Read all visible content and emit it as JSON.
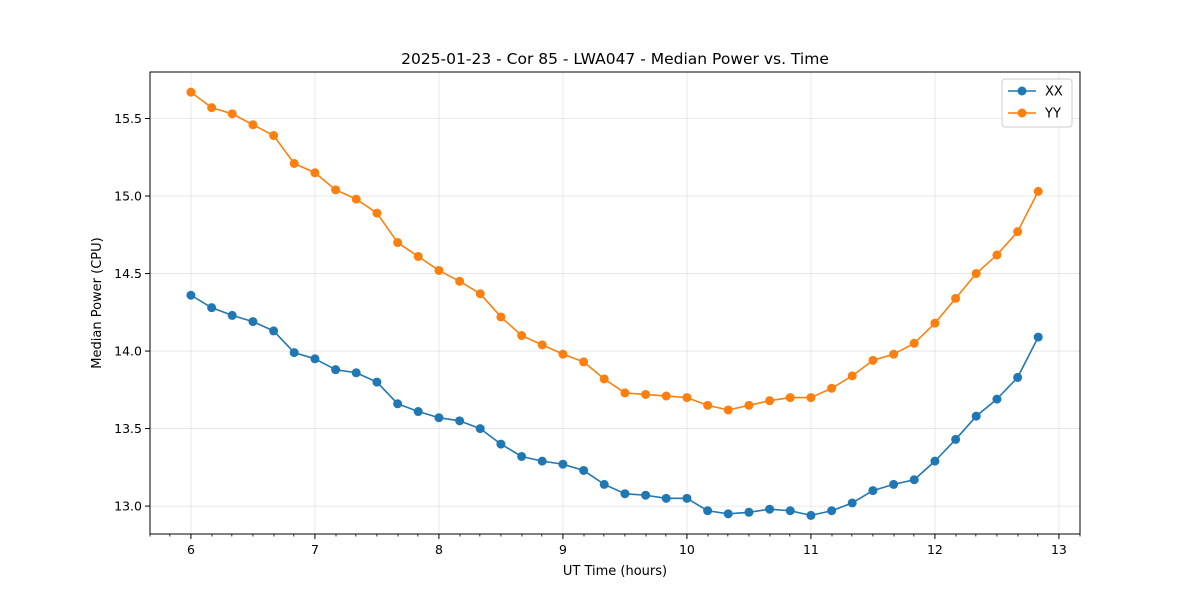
{
  "chart_data": {
    "type": "line",
    "title": "2025-01-23 - Cor 85 - LWA047 - Median Power vs. Time",
    "xlabel": "UT Time (hours)",
    "ylabel": "Median Power (CPU)",
    "xlim": [
      5.67,
      13.17
    ],
    "ylim": [
      12.82,
      15.8
    ],
    "xticks": [
      6,
      7,
      8,
      9,
      10,
      11,
      12,
      13
    ],
    "xtick_labels": [
      "6",
      "7",
      "8",
      "9",
      "10",
      "11",
      "12",
      "13"
    ],
    "xminor_ticks": [
      5.67,
      5.83,
      6.17,
      6.33,
      6.5,
      6.67,
      6.83,
      7.17,
      7.33,
      7.5,
      7.67,
      7.83,
      8.17,
      8.33,
      8.5,
      8.67,
      8.83,
      9.17,
      9.33,
      9.5,
      9.67,
      9.83,
      10.17,
      10.33,
      10.5,
      10.67,
      10.83,
      11.17,
      11.33,
      11.5,
      11.67,
      11.83,
      12.17,
      12.33,
      12.5,
      12.67,
      12.83,
      13.17
    ],
    "yticks": [
      13.0,
      13.5,
      14.0,
      14.5,
      15.0,
      15.5
    ],
    "ytick_labels": [
      "13.0",
      "13.5",
      "14.0",
      "14.5",
      "15.0",
      "15.5"
    ],
    "grid": true,
    "legend_position": "top-right",
    "x": [
      6.0,
      6.167,
      6.333,
      6.5,
      6.667,
      6.833,
      7.0,
      7.167,
      7.333,
      7.5,
      7.667,
      7.833,
      8.0,
      8.167,
      8.333,
      8.5,
      8.667,
      8.833,
      9.0,
      9.167,
      9.333,
      9.5,
      9.667,
      9.833,
      10.0,
      10.167,
      10.333,
      10.5,
      10.667,
      10.833,
      11.0,
      11.167,
      11.333,
      11.5,
      11.667,
      11.833,
      12.0,
      12.167,
      12.333,
      12.5,
      12.667,
      12.833
    ],
    "series": [
      {
        "name": "XX",
        "color": "#1f77b4",
        "values": [
          14.36,
          14.28,
          14.23,
          14.19,
          14.13,
          13.99,
          13.95,
          13.88,
          13.86,
          13.8,
          13.66,
          13.61,
          13.57,
          13.55,
          13.5,
          13.4,
          13.32,
          13.29,
          13.27,
          13.23,
          13.14,
          13.08,
          13.07,
          13.05,
          13.05,
          12.97,
          12.95,
          12.96,
          12.98,
          12.97,
          12.94,
          12.97,
          13.02,
          13.1,
          13.14,
          13.17,
          13.29,
          13.43,
          13.58,
          13.69,
          13.83,
          14.09
        ]
      },
      {
        "name": "YY",
        "color": "#ff7f0e",
        "values": [
          15.67,
          15.57,
          15.53,
          15.46,
          15.39,
          15.21,
          15.15,
          15.04,
          14.98,
          14.89,
          14.7,
          14.61,
          14.52,
          14.45,
          14.37,
          14.22,
          14.1,
          14.04,
          13.98,
          13.93,
          13.82,
          13.73,
          13.72,
          13.71,
          13.7,
          13.65,
          13.62,
          13.65,
          13.68,
          13.7,
          13.7,
          13.76,
          13.84,
          13.94,
          13.98,
          14.05,
          14.18,
          14.34,
          14.5,
          14.62,
          14.77,
          15.03
        ]
      }
    ]
  }
}
